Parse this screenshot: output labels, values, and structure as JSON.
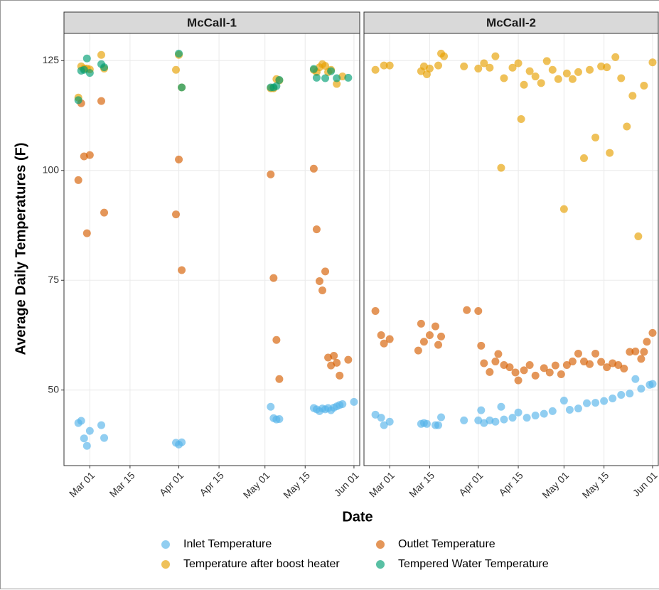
{
  "chart_data": {
    "type": "scatter",
    "y_label": "Average Daily Temperatures (F)",
    "x_label": "Date",
    "xlim": [
      "Feb 20",
      "Jun 03"
    ],
    "xticks": [
      "Mar 01",
      "Mar 15",
      "Apr 01",
      "Apr 15",
      "May 01",
      "May 15",
      "Jun 01"
    ],
    "ylim": [
      32.8,
      131.2
    ],
    "yticks": [
      50,
      75,
      100,
      125
    ],
    "grid": true,
    "legend": "bottom",
    "series": [
      {
        "name": "Inlet Temperature",
        "color": "#56B4E9"
      },
      {
        "name": "Outlet Temperature",
        "color": "#D55E00"
      },
      {
        "name": "Temperature after boost heater",
        "color": "#E69F00"
      },
      {
        "name": "Tempered Water Temperature",
        "color": "#009E73"
      }
    ],
    "panels": [
      {
        "title": "McCall-1",
        "series": [
          {
            "x": [
              "Feb 25",
              "Feb 26",
              "Feb 27",
              "Feb 28",
              "Mar 01",
              "Mar 05",
              "Mar 06",
              "Mar 31",
              "Apr 01",
              "Apr 02",
              "May 03",
              "May 04",
              "May 05",
              "May 06",
              "May 18",
              "May 19",
              "May 20",
              "May 21",
              "May 22",
              "May 23",
              "May 24",
              "May 25",
              "May 26",
              "May 27",
              "May 28",
              "Jun 01"
            ],
            "values": [
              42.5,
              43,
              39,
              37.3,
              40.7,
              42,
              39.1,
              38,
              37.6,
              38.1,
              46.2,
              43.6,
              43.3,
              43.4,
              45.9,
              45.6,
              45.2,
              45.8,
              45.6,
              45.9,
              45.4,
              46,
              46.3,
              46.6,
              46.8,
              47.3
            ]
          },
          {
            "x": [
              "Feb 25",
              "Feb 26",
              "Feb 27",
              "Feb 28",
              "Mar 01",
              "Mar 05",
              "Mar 06",
              "Mar 31",
              "Apr 01",
              "Apr 02",
              "May 03",
              "May 04",
              "May 05",
              "May 06",
              "May 18",
              "May 19",
              "May 20",
              "May 21",
              "May 22",
              "May 23",
              "May 24",
              "May 25",
              "May 26",
              "May 27",
              "May 30"
            ],
            "values": [
              97.8,
              115.3,
              103.2,
              85.7,
              103.5,
              115.8,
              90.4,
              90,
              102.5,
              77.3,
              99.1,
              75.5,
              61.4,
              52.5,
              100.4,
              86.6,
              74.8,
              72.7,
              77,
              57.4,
              55.6,
              57.8,
              56.2,
              53.3,
              56.9
            ]
          },
          {
            "x": [
              "Feb 25",
              "Feb 26",
              "Feb 27",
              "Feb 28",
              "Mar 01",
              "Mar 05",
              "Mar 06",
              "Mar 31",
              "Apr 01",
              "Apr 02",
              "May 03",
              "May 04",
              "May 05",
              "May 06",
              "May 18",
              "May 19",
              "May 20",
              "May 21",
              "May 22",
              "May 23",
              "May 24",
              "May 26",
              "May 28"
            ],
            "values": [
              116.6,
              123.7,
              123.2,
              123.2,
              123,
              126.3,
              123.2,
              122.9,
              126.3,
              118.9,
              118.7,
              118.7,
              120.8,
              120.5,
              122.9,
              122.4,
              123.5,
              124.2,
              123.8,
              122.4,
              122.9,
              119.7,
              121.4
            ]
          },
          {
            "x": [
              "Feb 25",
              "Feb 26",
              "Feb 27",
              "Feb 28",
              "Mar 01",
              "Mar 05",
              "Mar 06",
              "Apr 01",
              "Apr 02",
              "May 03",
              "May 04",
              "May 05",
              "May 06",
              "May 18",
              "May 19",
              "May 22",
              "May 24",
              "May 26",
              "May 30"
            ],
            "values": [
              116,
              122.7,
              122.9,
              125.5,
              122.2,
              124.2,
              123.5,
              126.6,
              118.9,
              118.9,
              118.9,
              119.2,
              120.6,
              123.1,
              121.1,
              121,
              122.6,
              121,
              121.1
            ]
          }
        ]
      },
      {
        "title": "McCall-2",
        "series": [
          {
            "x": [
              "Feb 24",
              "Feb 26",
              "Feb 27",
              "Mar 01",
              "Mar 12",
              "Mar 13",
              "Mar 14",
              "Mar 17",
              "Mar 18",
              "Mar 19",
              "Mar 27",
              "Apr 01",
              "Apr 02",
              "Apr 03",
              "Apr 05",
              "Apr 07",
              "Apr 09",
              "Apr 10",
              "Apr 13",
              "Apr 15",
              "Apr 18",
              "Apr 21",
              "Apr 24",
              "Apr 27",
              "May 01",
              "May 03",
              "May 06",
              "May 09",
              "May 12",
              "May 15",
              "May 18",
              "May 21",
              "May 24",
              "May 26",
              "May 28",
              "May 31",
              "Jun 01"
            ],
            "values": [
              44.4,
              43.7,
              42,
              42.8,
              42.3,
              42.5,
              42.3,
              42,
              42,
              43.8,
              43.1,
              43.1,
              45.4,
              42.5,
              43.1,
              42.8,
              46.2,
              43.3,
              43.7,
              44.9,
              43.7,
              44.2,
              44.6,
              45.2,
              47.6,
              45.5,
              45.8,
              47,
              47.1,
              47.5,
              48.1,
              48.9,
              49.2,
              52.5,
              50.3,
              51.2,
              51.4
            ]
          },
          {
            "x": [
              "Feb 24",
              "Feb 26",
              "Feb 27",
              "Mar 01",
              "Mar 11",
              "Mar 12",
              "Mar 13",
              "Mar 15",
              "Mar 17",
              "Mar 18",
              "Mar 19",
              "Mar 28",
              "Apr 01",
              "Apr 02",
              "Apr 03",
              "Apr 05",
              "Apr 07",
              "Apr 08",
              "Apr 10",
              "Apr 12",
              "Apr 14",
              "Apr 15",
              "Apr 17",
              "Apr 19",
              "Apr 21",
              "Apr 24",
              "Apr 26",
              "Apr 28",
              "Apr 30",
              "May 02",
              "May 04",
              "May 06",
              "May 08",
              "May 10",
              "May 12",
              "May 14",
              "May 16",
              "May 18",
              "May 20",
              "May 22",
              "May 24",
              "May 26",
              "May 28",
              "May 29",
              "May 30",
              "Jun 01"
            ],
            "values": [
              68,
              62.5,
              60.6,
              61.6,
              59,
              65.1,
              61,
              62.5,
              64.5,
              60.3,
              62.2,
              68.2,
              68,
              60.1,
              56.1,
              54.1,
              56.5,
              58.2,
              55.7,
              55.2,
              54,
              52.2,
              54.5,
              55.7,
              53.3,
              55,
              54,
              55.6,
              53.6,
              55.7,
              56.5,
              58.3,
              56.5,
              55.9,
              58.3,
              56.4,
              55.2,
              56.1,
              55.7,
              54.9,
              58.7,
              58.8,
              57.1,
              58.7,
              61,
              63
            ]
          },
          {
            "x": [
              "Feb 24",
              "Feb 27",
              "Mar 01",
              "Mar 12",
              "Mar 13",
              "Mar 14",
              "Mar 15",
              "Mar 18",
              "Mar 19",
              "Mar 20",
              "Mar 27",
              "Apr 01",
              "Apr 03",
              "Apr 05",
              "Apr 07",
              "Apr 09",
              "Apr 10",
              "Apr 13",
              "Apr 15",
              "Apr 16",
              "Apr 17",
              "Apr 19",
              "Apr 21",
              "Apr 23",
              "Apr 25",
              "Apr 27",
              "Apr 29",
              "May 01",
              "May 02",
              "May 04",
              "May 06",
              "May 08",
              "May 10",
              "May 12",
              "May 14",
              "May 16",
              "May 17",
              "May 19",
              "May 21",
              "May 23",
              "May 25",
              "May 27",
              "May 29",
              "Jun 01"
            ],
            "values": [
              122.9,
              123.9,
              123.9,
              122.6,
              123.7,
              121.9,
              123.2,
              123.9,
              126.6,
              126,
              123.7,
              123.2,
              124.4,
              123.4,
              126,
              100.6,
              121,
              123.4,
              124.4,
              111.7,
              119.5,
              122.6,
              121.4,
              119.9,
              124.9,
              122.9,
              120.8,
              91.2,
              122.1,
              120.8,
              122.4,
              102.8,
              122.9,
              107.5,
              123.7,
              123.5,
              104,
              125.8,
              121,
              110,
              117,
              85,
              119.3,
              124.6
            ]
          },
          {
            "x": [],
            "values": []
          }
        ]
      }
    ]
  }
}
